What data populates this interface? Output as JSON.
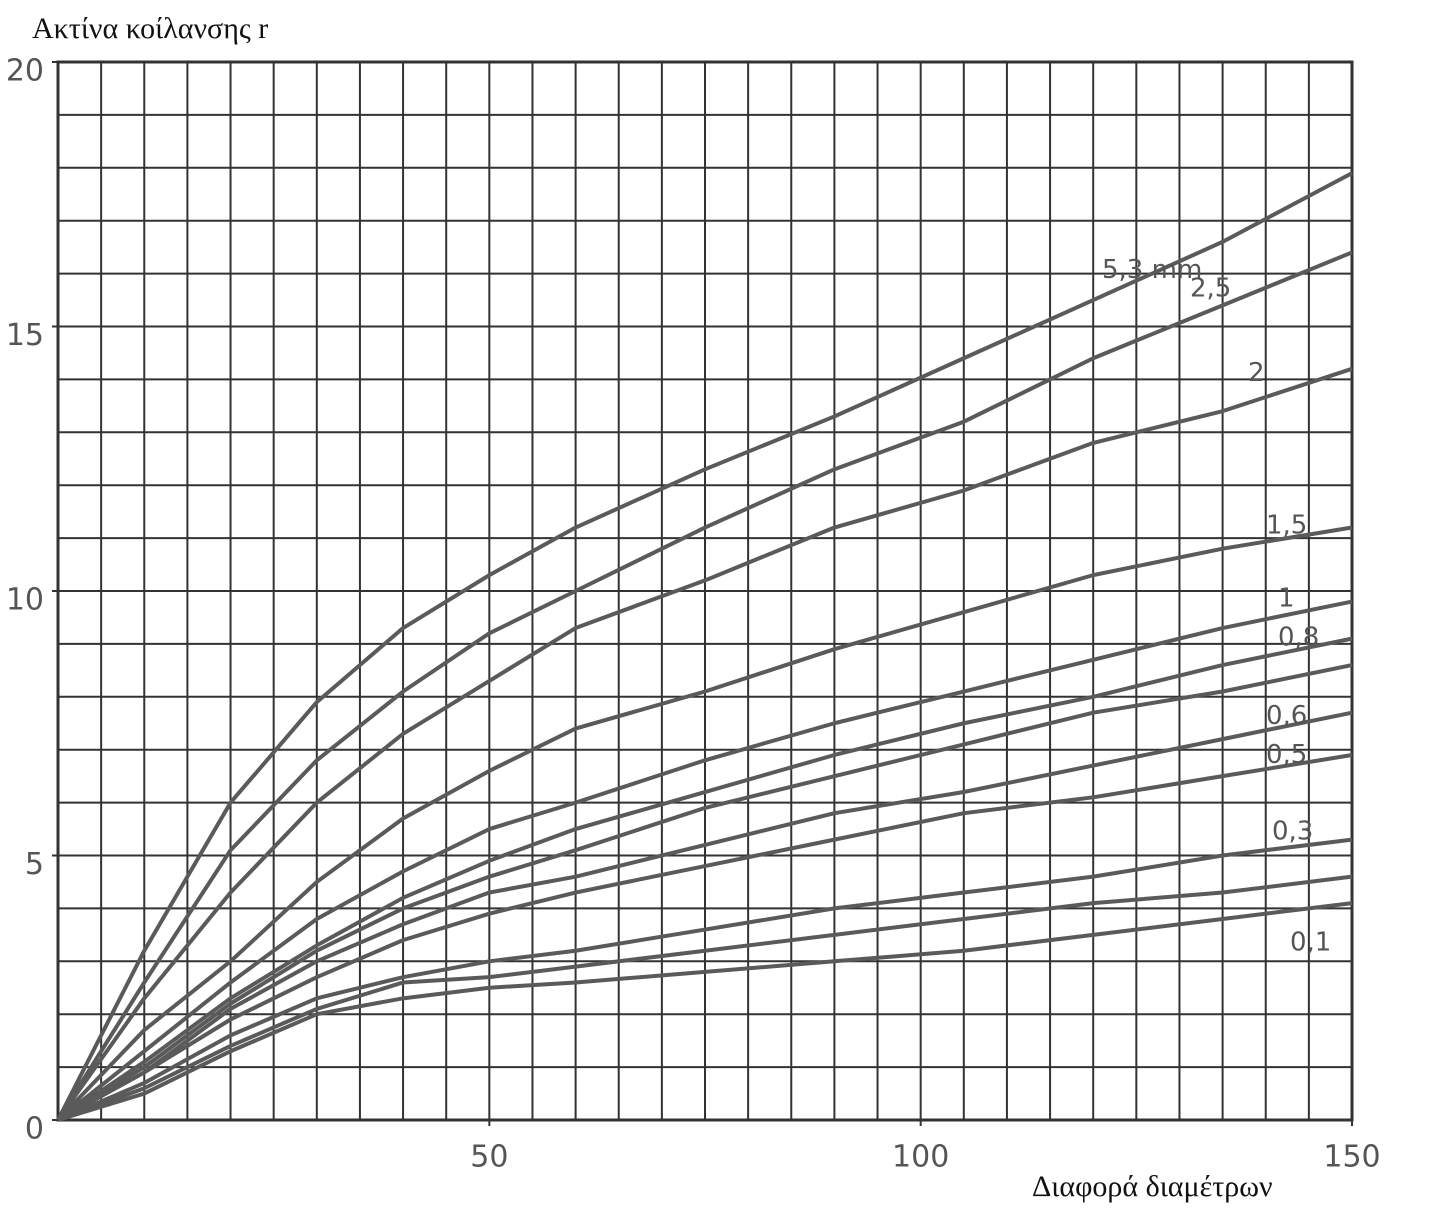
{
  "chart_data": {
    "type": "line",
    "y_label": "Ακτίνα κοίλανσης r",
    "x_label": "Διαφορά διαμέτρων",
    "x": [
      0,
      10,
      20,
      30,
      40,
      50,
      60,
      75,
      90,
      105,
      120,
      135,
      150
    ],
    "xlim": [
      0,
      150
    ],
    "ylim": [
      0,
      20
    ],
    "xticks": [
      50,
      100,
      150
    ],
    "yticks": [
      0,
      5,
      10,
      15,
      20
    ],
    "grid": true,
    "grid_color": "#333333",
    "series": [
      {
        "name": "5,3 mm",
        "color": "#5a5a5a",
        "values": [
          0,
          3.2,
          6.0,
          7.9,
          9.3,
          10.3,
          11.2,
          12.3,
          13.3,
          14.4,
          15.5,
          16.6,
          17.9
        ]
      },
      {
        "name": "2,5",
        "color": "#5a5a5a",
        "values": [
          0,
          2.6,
          5.1,
          6.8,
          8.1,
          9.2,
          10.0,
          11.2,
          12.3,
          13.2,
          14.4,
          15.4,
          16.4
        ]
      },
      {
        "name": "2",
        "color": "#5a5a5a",
        "values": [
          0,
          2.3,
          4.3,
          6.0,
          7.3,
          8.3,
          9.3,
          10.2,
          11.2,
          11.9,
          12.8,
          13.4,
          14.2
        ]
      },
      {
        "name": "1,5",
        "color": "#5a5a5a",
        "values": [
          0,
          1.7,
          3.0,
          4.5,
          5.7,
          6.6,
          7.4,
          8.1,
          8.9,
          9.6,
          10.3,
          10.8,
          11.2
        ]
      },
      {
        "name": "1",
        "color": "#5a5a5a",
        "values": [
          0,
          1.3,
          2.6,
          3.8,
          4.7,
          5.5,
          6.0,
          6.8,
          7.5,
          8.1,
          8.7,
          9.3,
          9.8
        ]
      },
      {
        "name": "0,8",
        "color": "#5a5a5a",
        "values": [
          0,
          1.1,
          2.3,
          3.3,
          4.2,
          4.9,
          5.5,
          6.2,
          6.9,
          7.5,
          8.0,
          8.6,
          9.1
        ]
      },
      {
        "color": "#5a5a5a",
        "values": [
          0,
          1.0,
          2.2,
          3.2,
          4.0,
          4.6,
          5.1,
          5.9,
          6.5,
          7.1,
          7.7,
          8.1,
          8.6
        ]
      },
      {
        "name": "0,6",
        "color": "#5a5a5a",
        "values": [
          0,
          0.9,
          2.1,
          3.0,
          3.7,
          4.3,
          4.6,
          5.2,
          5.8,
          6.2,
          6.7,
          7.2,
          7.7
        ]
      },
      {
        "name": "0,5",
        "color": "#5a5a5a",
        "values": [
          0,
          0.9,
          1.9,
          2.7,
          3.4,
          3.9,
          4.3,
          4.8,
          5.3,
          5.8,
          6.1,
          6.5,
          6.9
        ]
      },
      {
        "name": "0,3",
        "color": "#5a5a5a",
        "values": [
          0,
          0.7,
          1.6,
          2.3,
          2.7,
          3.0,
          3.2,
          3.6,
          4.0,
          4.3,
          4.6,
          5.0,
          5.3
        ]
      },
      {
        "color": "#5a5a5a",
        "values": [
          0,
          0.6,
          1.4,
          2.1,
          2.6,
          2.7,
          2.9,
          3.2,
          3.5,
          3.8,
          4.1,
          4.3,
          4.6
        ]
      },
      {
        "name": "0,1",
        "color": "#5a5a5a",
        "values": [
          0,
          0.5,
          1.3,
          2.0,
          2.3,
          2.5,
          2.6,
          2.8,
          3.0,
          3.2,
          3.5,
          3.8,
          4.1
        ]
      }
    ]
  }
}
